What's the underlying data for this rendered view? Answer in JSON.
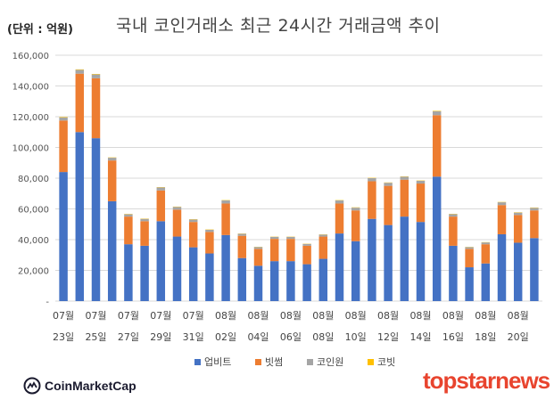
{
  "chart_data": {
    "type": "bar",
    "stacked": true,
    "title": "국내 코인거래소 최근 24시간 거래금액 추이",
    "unit_label": "(단위 : 억원)",
    "ylim": [
      0,
      160000
    ],
    "yticks": [
      "-",
      "20,000",
      "40,000",
      "60,000",
      "80,000",
      "100,000",
      "120,000",
      "140,000",
      "160,000"
    ],
    "categories": [
      "07월 23일",
      "07월 24일",
      "07월 25일",
      "07월 26일",
      "07월 27일",
      "07월 28일",
      "07월 29일",
      "07월 30일",
      "07월 31일",
      "08월 01일",
      "08월 02일",
      "08월 03일",
      "08월 04일",
      "08월 05일",
      "08월 06일",
      "08월 07일",
      "08월 08일",
      "08월 09일",
      "08월 10일",
      "08월 11일",
      "08월 12일",
      "08월 13일",
      "08월 14일",
      "08월 15일",
      "08월 16일",
      "08월 17일",
      "08월 18일",
      "08월 19일",
      "08월 20일",
      "08월 21일"
    ],
    "xtick_labels": [
      {
        "month": "07월",
        "day": "23일"
      },
      {
        "month": "07월",
        "day": "25일"
      },
      {
        "month": "07월",
        "day": "27일"
      },
      {
        "month": "07월",
        "day": "29일"
      },
      {
        "month": "07월",
        "day": "31일"
      },
      {
        "month": "08월",
        "day": "02일"
      },
      {
        "month": "08월",
        "day": "04일"
      },
      {
        "month": "08월",
        "day": "06일"
      },
      {
        "month": "08월",
        "day": "08일"
      },
      {
        "month": "08월",
        "day": "10일"
      },
      {
        "month": "08월",
        "day": "12일"
      },
      {
        "month": "08월",
        "day": "14일"
      },
      {
        "month": "08월",
        "day": "16일"
      },
      {
        "month": "08월",
        "day": "18일"
      },
      {
        "month": "08월",
        "day": "20일"
      }
    ],
    "series": [
      {
        "name": "업비트",
        "color": "#4472c4",
        "values": [
          84000,
          110000,
          106000,
          65000,
          37000,
          36000,
          52000,
          42000,
          35000,
          31000,
          43000,
          28000,
          23000,
          26000,
          26000,
          24000,
          27500,
          44000,
          39000,
          53500,
          49500,
          55000,
          51500,
          81000,
          36000,
          22000,
          24500,
          43500,
          38000,
          41000
        ]
      },
      {
        "name": "빗썸",
        "color": "#ed7d31",
        "values": [
          33500,
          38000,
          39000,
          26500,
          18000,
          16000,
          20000,
          17500,
          16500,
          14000,
          20500,
          14500,
          11000,
          14500,
          14500,
          12000,
          14500,
          19500,
          20000,
          24500,
          25500,
          24000,
          25000,
          40000,
          19000,
          12000,
          12500,
          19000,
          18000,
          18000
        ]
      },
      {
        "name": "코인원",
        "color": "#a5a5a5",
        "values": [
          2000,
          2500,
          2500,
          1800,
          1500,
          1500,
          2000,
          1800,
          1600,
          1400,
          2000,
          1300,
          1200,
          1300,
          1300,
          1200,
          1300,
          2000,
          1800,
          2000,
          2000,
          2000,
          1800,
          2500,
          1600,
          1100,
          1200,
          1800,
          1600,
          1700
        ]
      },
      {
        "name": "코빗",
        "color": "#ffc000",
        "values": [
          300,
          300,
          300,
          200,
          200,
          200,
          200,
          200,
          200,
          200,
          200,
          150,
          150,
          150,
          150,
          150,
          150,
          200,
          200,
          200,
          200,
          200,
          200,
          300,
          200,
          150,
          150,
          200,
          200,
          200
        ]
      }
    ],
    "legend_position": "bottom"
  },
  "branding": {
    "left_logo_text": "CoinMarketCap",
    "right_logo_text": "topstarnews"
  }
}
